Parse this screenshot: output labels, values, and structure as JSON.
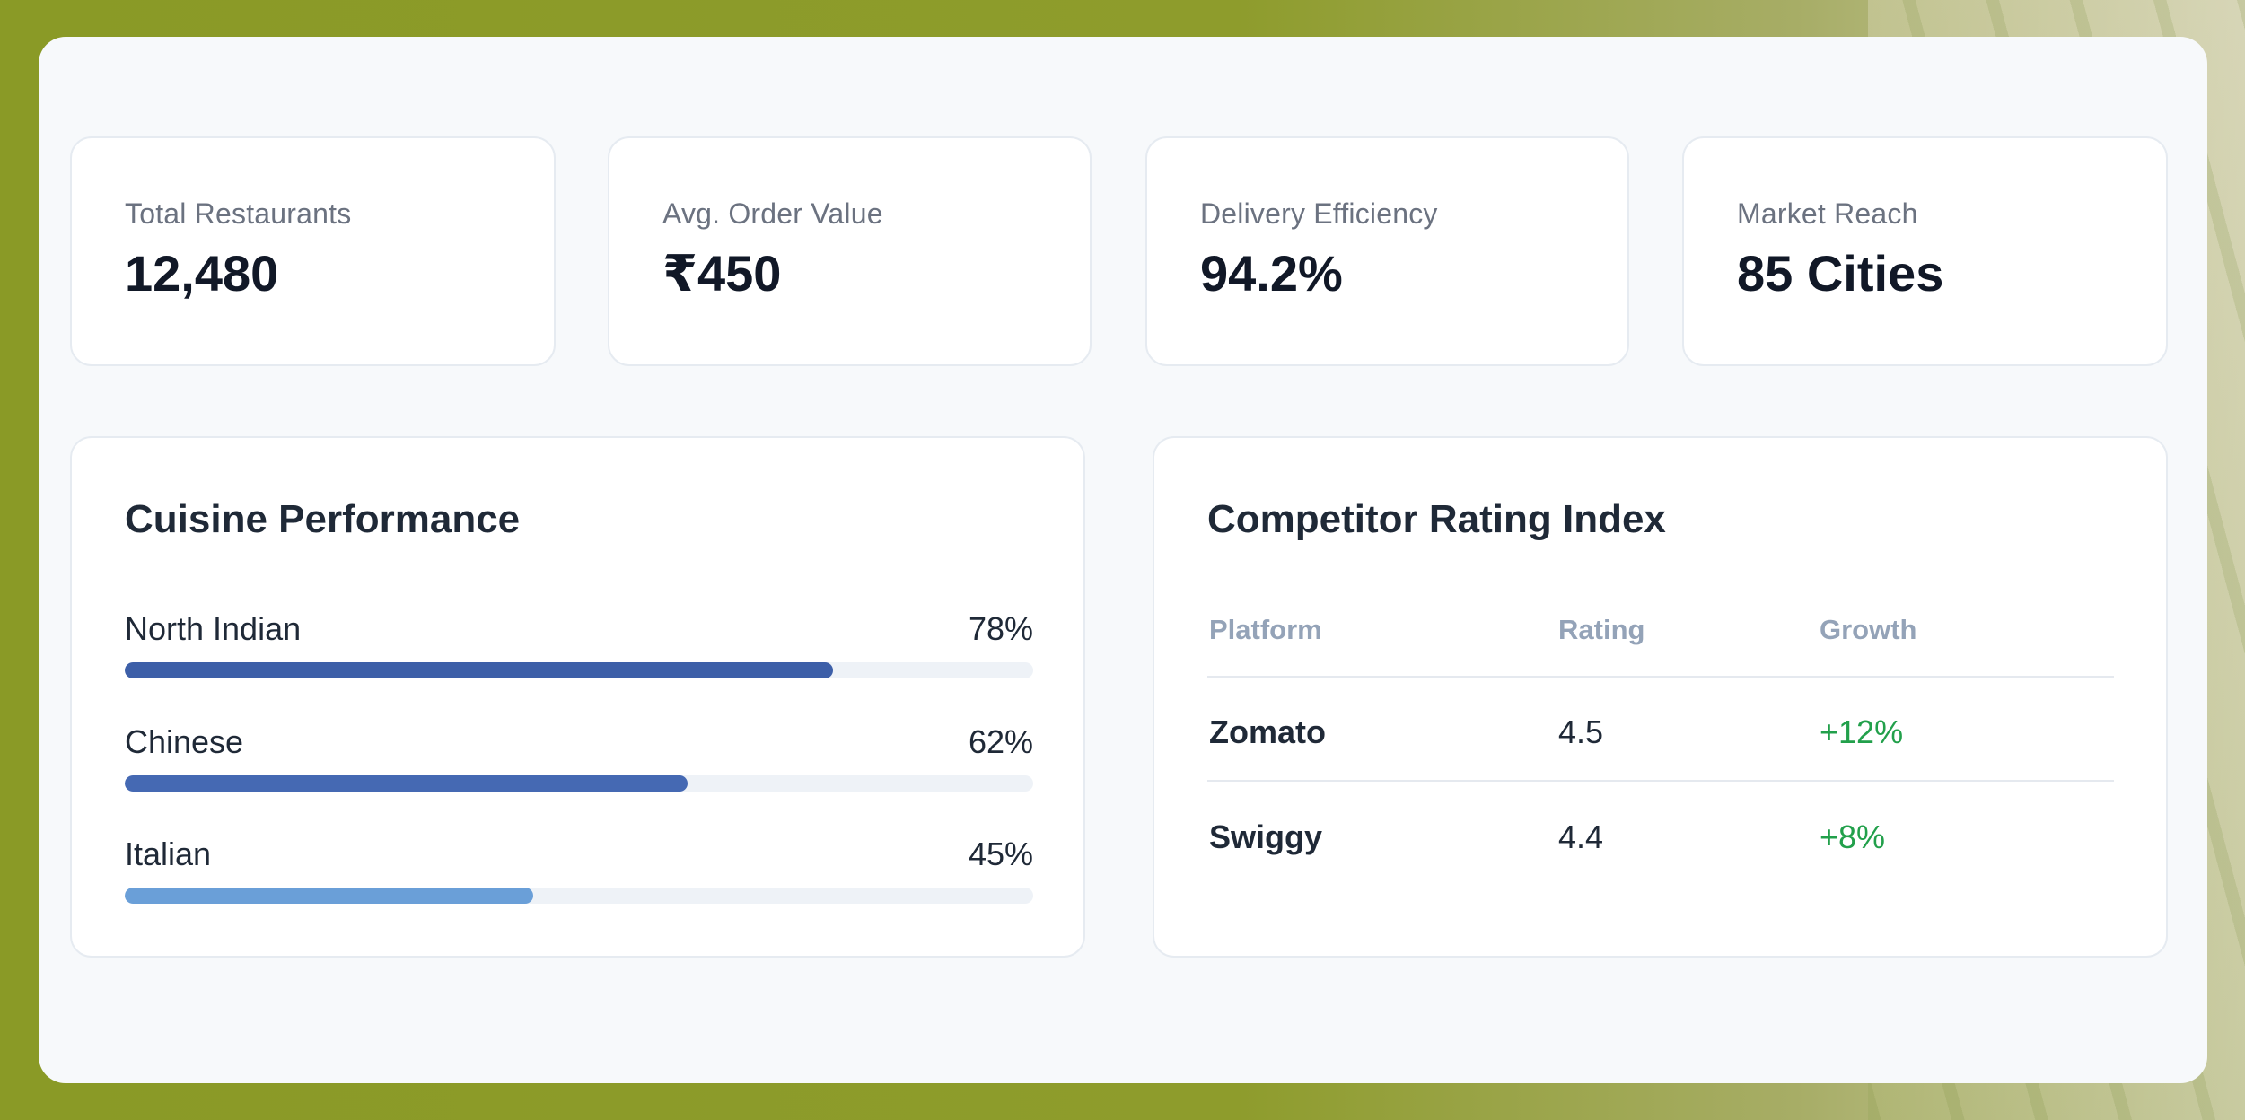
{
  "stats": [
    {
      "label": "Total Restaurants",
      "value": "12,480"
    },
    {
      "label": "Avg. Order Value",
      "value": "₹450"
    },
    {
      "label": "Delivery Efficiency",
      "value": "94.2%"
    },
    {
      "label": "Market Reach",
      "value": "85 Cities"
    }
  ],
  "cuisine": {
    "title": "Cuisine Performance",
    "items": [
      {
        "label": "North Indian",
        "value_text": "78%",
        "percent": 78,
        "color": "#3d5fa8"
      },
      {
        "label": "Chinese",
        "value_text": "62%",
        "percent": 62,
        "color": "#4569b3"
      },
      {
        "label": "Italian",
        "value_text": "45%",
        "percent": 45,
        "color": "#6a9fd8"
      }
    ]
  },
  "competitors": {
    "title": "Competitor Rating Index",
    "headers": [
      "Platform",
      "Rating",
      "Growth"
    ],
    "rows": [
      {
        "platform": "Zomato",
        "rating": "4.5",
        "growth": "+12%"
      },
      {
        "platform": "Swiggy",
        "rating": "4.4",
        "growth": "+8%"
      }
    ],
    "growth_color": "#22a04b"
  }
}
